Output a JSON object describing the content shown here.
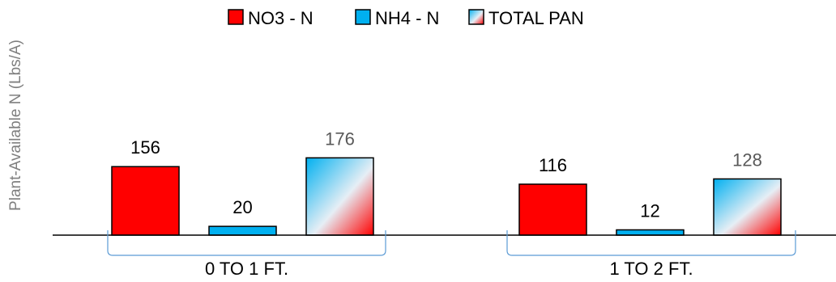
{
  "chart_data": {
    "type": "bar",
    "title": "",
    "xlabel": "",
    "ylabel": "Plant-Available N (Lbs/A)",
    "ylim": [
      0,
      200
    ],
    "grid": false,
    "legend_position": "top-center",
    "categories": [
      "0 TO 1 FT.",
      "1 TO 2 FT."
    ],
    "series": [
      {
        "name": "NO3 - N",
        "values": [
          156,
          116
        ],
        "color": "#ff0000"
      },
      {
        "name": "NH4 - N",
        "values": [
          20,
          12
        ],
        "color": "#00b0f0"
      },
      {
        "name": "TOTAL PAN",
        "values": [
          176,
          128
        ],
        "color": "gradient: #00b0f0 to #ff0000"
      }
    ]
  }
}
